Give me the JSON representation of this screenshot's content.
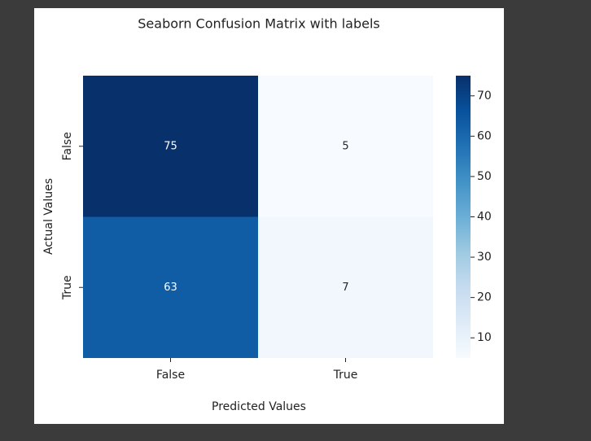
{
  "chart_data": {
    "type": "heatmap",
    "title": "Seaborn Confusion Matrix with labels",
    "xlabel": "Predicted Values",
    "ylabel": "Actual Values",
    "x_categories": [
      "False",
      "True"
    ],
    "y_categories": [
      "False",
      "True"
    ],
    "values": [
      [
        75,
        5
      ],
      [
        63,
        7
      ]
    ],
    "colormap": "Blues",
    "clim": [
      5,
      75
    ],
    "colorbar_ticks": [
      10,
      20,
      30,
      40,
      50,
      60,
      70
    ]
  }
}
